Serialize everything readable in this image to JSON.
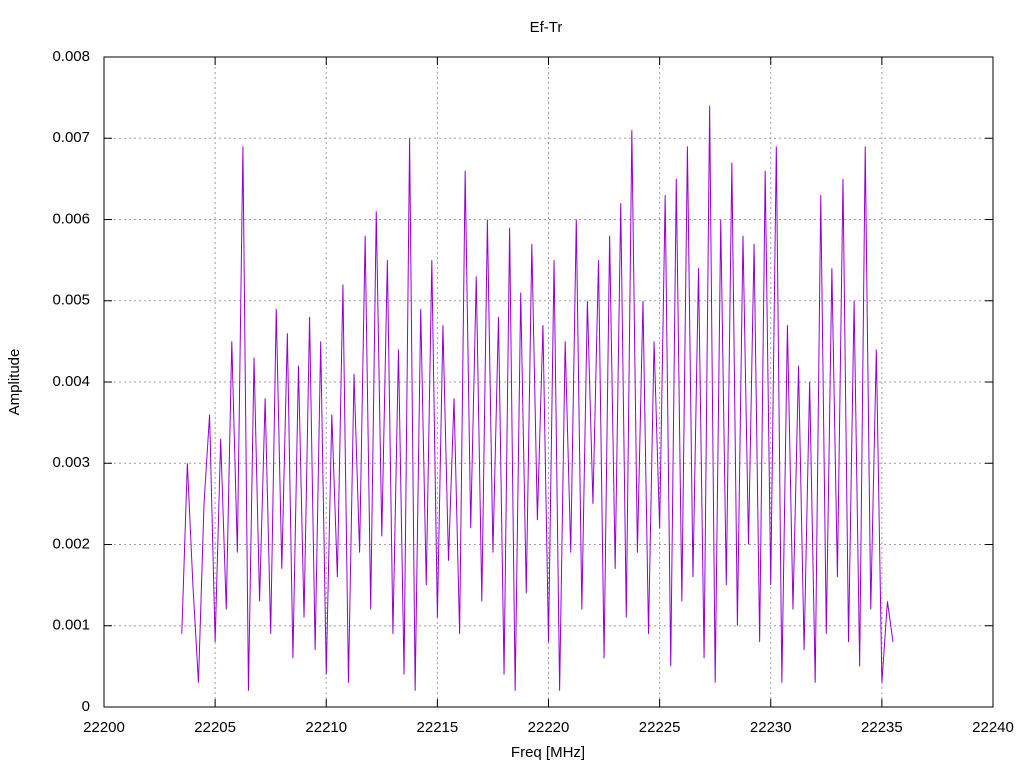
{
  "chart_data": {
    "type": "line",
    "title": "Ef-Tr",
    "xlabel": "Freq [MHz]",
    "ylabel": "Amplitude",
    "color": "#9400d3",
    "grid": true,
    "xlim": [
      22200,
      22240
    ],
    "xticks": [
      22200,
      22205,
      22210,
      22215,
      22220,
      22225,
      22230,
      22235,
      22240
    ],
    "ylim": [
      0,
      0.008
    ],
    "yticks": [
      0,
      0.001,
      0.002,
      0.003,
      0.004,
      0.005,
      0.006,
      0.007,
      0.008
    ],
    "x": [
      22203.5,
      22203.75,
      22204,
      22204.25,
      22204.5,
      22204.75,
      22205,
      22205.25,
      22205.5,
      22205.75,
      22206,
      22206.25,
      22206.5,
      22206.75,
      22207,
      22207.25,
      22207.5,
      22207.75,
      22208,
      22208.25,
      22208.5,
      22208.75,
      22209,
      22209.25,
      22209.5,
      22209.75,
      22210,
      22210.25,
      22210.5,
      22210.75,
      22211,
      22211.25,
      22211.5,
      22211.75,
      22212,
      22212.25,
      22212.5,
      22212.75,
      22213,
      22213.25,
      22213.5,
      22213.75,
      22214,
      22214.25,
      22214.5,
      22214.75,
      22215,
      22215.25,
      22215.5,
      22215.75,
      22216,
      22216.25,
      22216.5,
      22216.75,
      22217,
      22217.25,
      22217.5,
      22217.75,
      22218,
      22218.25,
      22218.5,
      22218.75,
      22219,
      22219.25,
      22219.5,
      22219.75,
      22220,
      22220.25,
      22220.5,
      22220.75,
      22221,
      22221.25,
      22221.5,
      22221.75,
      22222,
      22222.25,
      22222.5,
      22222.75,
      22223,
      22223.25,
      22223.5,
      22223.75,
      22224,
      22224.25,
      22224.5,
      22224.75,
      22225,
      22225.25,
      22225.5,
      22225.75,
      22226,
      22226.25,
      22226.5,
      22226.75,
      22227,
      22227.25,
      22227.5,
      22227.75,
      22228,
      22228.25,
      22228.5,
      22228.75,
      22229,
      22229.25,
      22229.5,
      22229.75,
      22230,
      22230.25,
      22230.5,
      22230.75,
      22231,
      22231.25,
      22231.5,
      22231.75,
      22232,
      22232.25,
      22232.5,
      22232.75,
      22233,
      22233.25,
      22233.5,
      22233.75,
      22234,
      22234.25,
      22234.5,
      22234.75,
      22235,
      22235.25,
      22235.5
    ],
    "values": [
      0.0009,
      0.003,
      0.0015,
      0.0003,
      0.0025,
      0.0036,
      0.0008,
      0.0033,
      0.0012,
      0.0045,
      0.0019,
      0.0069,
      0.0002,
      0.0043,
      0.0013,
      0.0038,
      0.0009,
      0.0049,
      0.0017,
      0.0046,
      0.0006,
      0.0042,
      0.0011,
      0.0048,
      0.0007,
      0.0045,
      0.0004,
      0.0036,
      0.0016,
      0.0052,
      0.0003,
      0.0041,
      0.0019,
      0.0058,
      0.0012,
      0.0061,
      0.0021,
      0.0055,
      0.0009,
      0.0044,
      0.0004,
      0.007,
      0.0002,
      0.0049,
      0.0015,
      0.0055,
      0.0011,
      0.0047,
      0.0018,
      0.0038,
      0.0009,
      0.0066,
      0.0022,
      0.0053,
      0.0013,
      0.006,
      0.0019,
      0.0048,
      0.0004,
      0.0059,
      0.0002,
      0.0051,
      0.0014,
      0.0057,
      0.0023,
      0.0047,
      0.0008,
      0.0055,
      0.0002,
      0.0045,
      0.0019,
      0.006,
      0.0012,
      0.005,
      0.0025,
      0.0055,
      0.0006,
      0.0058,
      0.0017,
      0.0062,
      0.0011,
      0.0071,
      0.0019,
      0.005,
      0.0009,
      0.0045,
      0.0022,
      0.0063,
      0.0005,
      0.0065,
      0.0013,
      0.0069,
      0.0016,
      0.0054,
      0.0006,
      0.0074,
      0.0003,
      0.006,
      0.0015,
      0.0067,
      0.001,
      0.0058,
      0.002,
      0.0057,
      0.0008,
      0.0066,
      0.0015,
      0.0069,
      0.0003,
      0.0047,
      0.0012,
      0.0042,
      0.0007,
      0.004,
      0.0003,
      0.0063,
      0.0009,
      0.0054,
      0.0016,
      0.0065,
      0.0008,
      0.005,
      0.0005,
      0.0069,
      0.0012,
      0.0044,
      0.0003,
      0.0013,
      0.0008
    ]
  }
}
